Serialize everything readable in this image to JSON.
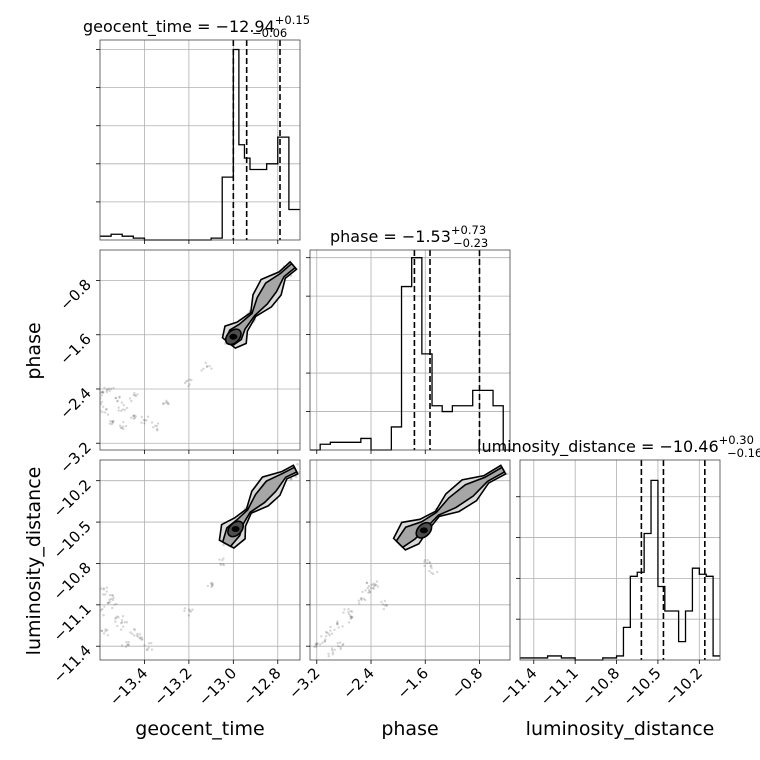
{
  "chart_data": {
    "type": "corner",
    "parameters": [
      {
        "name": "geocent_time",
        "axis_label": "geocent_time",
        "title_main": "geocent_time = −12.94",
        "title_sup": "+0.15",
        "title_sub": "−0.06",
        "range": [
          -13.6,
          -12.7
        ],
        "ticks": [
          -13.4,
          -13.2,
          -13.0,
          -12.8
        ],
        "tick_labels": [
          "−13.4",
          "−13.2",
          "−13.0",
          "−12.8"
        ],
        "quantiles": [
          -13.0,
          -12.94,
          -12.79
        ],
        "histogram": {
          "bin_edges": [
            -13.6,
            -13.55,
            -13.5,
            -13.45,
            -13.4,
            -13.35,
            -13.3,
            -13.25,
            -13.2,
            -13.15,
            -13.1,
            -13.05,
            -13.0,
            -12.975,
            -12.95,
            -12.925,
            -12.9,
            -12.875,
            -12.85,
            -12.825,
            -12.8,
            -12.775,
            -12.75,
            -12.7
          ],
          "counts": [
            0.02,
            0.03,
            0.02,
            0.01,
            0.0,
            0.0,
            0.0,
            0.0,
            0.0,
            0.0,
            0.01,
            0.33,
            1.0,
            0.5,
            0.43,
            0.37,
            0.37,
            0.37,
            0.4,
            0.4,
            0.54,
            0.54,
            0.16
          ],
          "ymax": 1.05
        }
      },
      {
        "name": "phase",
        "axis_label": "phase",
        "title_main": "phase = −1.53",
        "title_sup": "+0.73",
        "title_sub": "−0.23",
        "range": [
          -3.3,
          -0.35
        ],
        "ticks": [
          -3.2,
          -2.4,
          -1.6,
          -0.8
        ],
        "tick_labels": [
          "−3.2",
          "−2.4",
          "−1.6",
          "−0.8"
        ],
        "quantiles": [
          -1.76,
          -1.53,
          -0.8
        ],
        "histogram": {
          "bin_edges": [
            -3.3,
            -3.15,
            -3.0,
            -2.85,
            -2.7,
            -2.55,
            -2.4,
            -2.25,
            -2.1,
            -1.95,
            -1.8,
            -1.65,
            -1.5,
            -1.35,
            -1.2,
            -1.05,
            -0.9,
            -0.75,
            -0.6,
            -0.45,
            -0.3
          ],
          "counts": [
            0.0,
            0.03,
            0.04,
            0.04,
            0.04,
            0.06,
            0.0,
            0.0,
            0.12,
            0.85,
            1.0,
            0.5,
            0.23,
            0.2,
            0.23,
            0.23,
            0.31,
            0.31,
            0.23,
            0.0
          ],
          "ymax": 1.04
        }
      },
      {
        "name": "luminosity_distance",
        "axis_label": "luminosity_distance",
        "title_main": "luminosity_distance = −10.46",
        "title_sup": "+0.30",
        "title_sub": "−0.16",
        "range": [
          -11.5,
          -10.05
        ],
        "ticks": [
          -11.4,
          -11.1,
          -10.8,
          -10.5,
          -10.2
        ],
        "tick_labels": [
          "−11.4",
          "−11.1",
          "−10.8",
          "−10.5",
          "−10.2"
        ],
        "quantiles": [
          -10.62,
          -10.46,
          -10.16
        ],
        "histogram": {
          "bin_edges": [
            -11.5,
            -11.3,
            -11.2,
            -11.1,
            -11.0,
            -10.9,
            -10.8,
            -10.75,
            -10.7,
            -10.65,
            -10.6,
            -10.55,
            -10.5,
            -10.45,
            -10.4,
            -10.35,
            -10.3,
            -10.25,
            -10.2,
            -10.15,
            -10.1,
            -10.05
          ],
          "counts": [
            0.01,
            0.02,
            0.01,
            0.0,
            0.0,
            0.01,
            0.02,
            0.16,
            0.41,
            0.43,
            0.62,
            0.88,
            0.36,
            0.24,
            0.24,
            0.09,
            0.24,
            0.45,
            0.42,
            0.41,
            0.02
          ],
          "ymax": 0.98
        }
      }
    ],
    "pair_panels": [
      {
        "x_param": "geocent_time",
        "y_param": "phase",
        "ridge": [
          [
            -13.02,
            -1.72
          ],
          [
            -12.99,
            -1.6
          ],
          [
            -12.96,
            -1.48
          ],
          [
            -12.91,
            -1.3
          ],
          [
            -12.87,
            -1.1
          ],
          [
            -12.83,
            -0.9
          ],
          [
            -12.78,
            -0.72
          ],
          [
            -12.73,
            -0.58
          ]
        ],
        "core": [
          -13.0,
          -1.63
        ],
        "tail_points": [
          [
            -13.55,
            -2.4
          ],
          [
            -13.58,
            -2.45
          ],
          [
            -13.52,
            -2.55
          ],
          [
            -13.6,
            -2.6
          ],
          [
            -13.5,
            -2.7
          ],
          [
            -13.45,
            -2.8
          ],
          [
            -13.55,
            -2.9
          ],
          [
            -13.4,
            -2.85
          ],
          [
            -13.35,
            -2.95
          ],
          [
            -13.5,
            -2.95
          ],
          [
            -13.3,
            -2.6
          ],
          [
            -13.2,
            -2.3
          ],
          [
            -13.12,
            -2.1
          ],
          [
            -13.45,
            -2.5
          ],
          [
            -13.58,
            -2.75
          ]
        ]
      },
      {
        "x_param": "geocent_time",
        "y_param": "luminosity_distance",
        "ridge": [
          [
            -13.03,
            -10.66
          ],
          [
            -13.0,
            -10.57
          ],
          [
            -12.97,
            -10.5
          ],
          [
            -12.93,
            -10.42
          ],
          [
            -12.88,
            -10.33
          ],
          [
            -12.83,
            -10.24
          ],
          [
            -12.77,
            -10.16
          ],
          [
            -12.72,
            -10.12
          ]
        ],
        "core": [
          -12.99,
          -10.55
        ],
        "tail_points": [
          [
            -13.58,
            -11.0
          ],
          [
            -13.55,
            -11.05
          ],
          [
            -13.6,
            -11.15
          ],
          [
            -13.52,
            -11.2
          ],
          [
            -13.5,
            -11.25
          ],
          [
            -13.45,
            -11.3
          ],
          [
            -13.42,
            -11.35
          ],
          [
            -13.48,
            -11.4
          ],
          [
            -13.55,
            -11.1
          ],
          [
            -13.58,
            -11.3
          ],
          [
            -13.38,
            -11.4
          ],
          [
            -13.2,
            -11.15
          ],
          [
            -13.1,
            -10.95
          ],
          [
            -13.05,
            -10.8
          ]
        ]
      },
      {
        "x_param": "phase",
        "y_param": "luminosity_distance",
        "ridge": [
          [
            -1.98,
            -10.66
          ],
          [
            -1.82,
            -10.58
          ],
          [
            -1.62,
            -10.52
          ],
          [
            -1.42,
            -10.44
          ],
          [
            -1.2,
            -10.36
          ],
          [
            -0.95,
            -10.27
          ],
          [
            -0.7,
            -10.19
          ],
          [
            -0.45,
            -10.12
          ]
        ],
        "core": [
          -1.62,
          -10.56
        ],
        "tail_points": [
          [
            -2.4,
            -10.95
          ],
          [
            -2.45,
            -11.0
          ],
          [
            -2.55,
            -11.05
          ],
          [
            -2.35,
            -10.97
          ],
          [
            -2.75,
            -11.15
          ],
          [
            -2.9,
            -11.25
          ],
          [
            -3.0,
            -11.3
          ],
          [
            -3.1,
            -11.35
          ],
          [
            -2.85,
            -11.4
          ],
          [
            -3.0,
            -11.45
          ],
          [
            -3.2,
            -11.4
          ],
          [
            -2.7,
            -11.2
          ],
          [
            -2.2,
            -11.1
          ],
          [
            -1.6,
            -10.8
          ],
          [
            -1.5,
            -10.85
          ]
        ]
      }
    ]
  }
}
